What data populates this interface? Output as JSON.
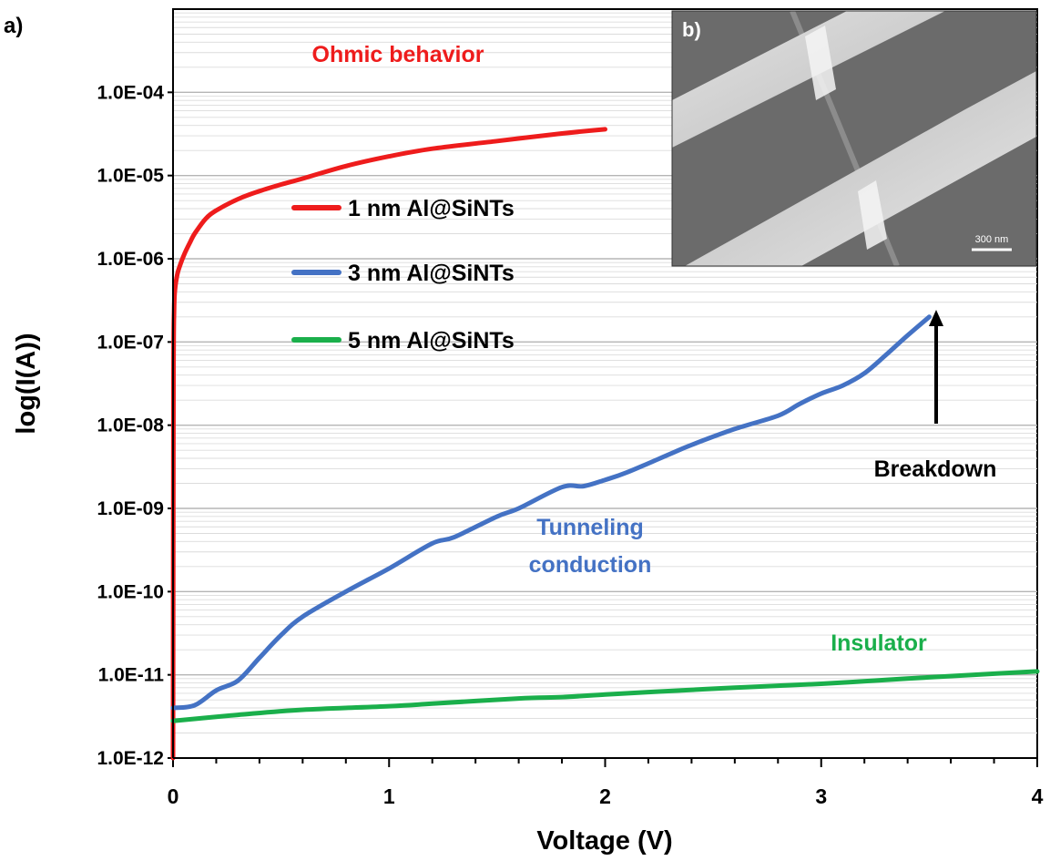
{
  "panel_labels": {
    "main": "a)",
    "inset": "b)"
  },
  "inset": {
    "scale_bar_label": "300 nm"
  },
  "colors": {
    "series_1nm": "#ee1c1c",
    "series_3nm": "#4472c4",
    "series_5nm": "#1aaf4b",
    "annotation_arrow": "#000000"
  },
  "chart_data": {
    "type": "line",
    "title": "",
    "xlabel": "Voltage (V)",
    "ylabel": "log(I(A))",
    "xlim": [
      0,
      4
    ],
    "ylim": [
      1e-12,
      0.001
    ],
    "yscale": "log",
    "grid": true,
    "legend_position": "inside-upper-left",
    "x_ticks": [
      "0",
      "1",
      "2",
      "3",
      "4"
    ],
    "y_ticks": [
      "1.0E-12",
      "1.0E-11",
      "1.0E-10",
      "1.0E-09",
      "1.0E-08",
      "1.0E-07",
      "1.0E-06",
      "1.0E-05",
      "1.0E-04"
    ],
    "series": [
      {
        "name": "1 nm Al@SiNTs",
        "color": "#ee1c1c",
        "x": [
          0,
          0.002,
          0.005,
          0.01,
          0.02,
          0.03,
          0.05,
          0.08,
          0.1,
          0.15,
          0.2,
          0.3,
          0.4,
          0.5,
          0.6,
          0.8,
          1.0,
          1.2,
          1.5,
          1.8,
          2.0
        ],
        "y": [
          1e-12,
          3e-08,
          2.5e-07,
          4.5e-07,
          6.5e-07,
          8e-07,
          1.1e-06,
          1.6e-06,
          2e-06,
          3e-06,
          3.8e-06,
          5.2e-06,
          6.5e-06,
          7.8e-06,
          9.2e-06,
          1.3e-05,
          1.7e-05,
          2.1e-05,
          2.6e-05,
          3.2e-05,
          3.6e-05
        ]
      },
      {
        "name": "3 nm Al@SiNTs",
        "color": "#4472c4",
        "x": [
          0,
          0.1,
          0.2,
          0.3,
          0.4,
          0.5,
          0.6,
          0.8,
          1.0,
          1.2,
          1.3,
          1.5,
          1.6,
          1.8,
          1.9,
          2.0,
          2.1,
          2.3,
          2.4,
          2.6,
          2.8,
          2.9,
          3.0,
          3.1,
          3.2,
          3.3,
          3.4,
          3.5
        ],
        "y": [
          4e-12,
          4.3e-12,
          6.5e-12,
          8.5e-12,
          1.6e-11,
          3e-11,
          5e-11,
          1e-10,
          1.9e-10,
          3.8e-10,
          4.5e-10,
          8e-10,
          1e-09,
          1.8e-09,
          1.85e-09,
          2.2e-09,
          2.7e-09,
          4.5e-09,
          5.8e-09,
          9e-09,
          1.3e-08,
          1.8e-08,
          2.4e-08,
          3e-08,
          4.2e-08,
          7e-08,
          1.2e-07,
          2e-07
        ]
      },
      {
        "name": "5 nm Al@SiNTs",
        "color": "#1aaf4b",
        "x": [
          0,
          0.3,
          0.6,
          1.0,
          1.2,
          1.6,
          1.8,
          2.0,
          2.2,
          2.6,
          3.0,
          3.4,
          3.7,
          4.0
        ],
        "y": [
          2.8e-12,
          3.3e-12,
          3.8e-12,
          4.2e-12,
          4.5e-12,
          5.2e-12,
          5.4e-12,
          5.8e-12,
          6.2e-12,
          7e-12,
          7.8e-12,
          9e-12,
          1e-11,
          1.1e-11
        ]
      }
    ],
    "annotations": [
      {
        "text": "Ohmic behavior",
        "color": "#ee1c1c"
      },
      {
        "text": "Tunneling",
        "color": "#4472c4"
      },
      {
        "text": "conduction",
        "color": "#4472c4"
      },
      {
        "text": "Breakdown",
        "color": "#000000"
      },
      {
        "text": "Insulator",
        "color": "#1aaf4b"
      }
    ]
  }
}
